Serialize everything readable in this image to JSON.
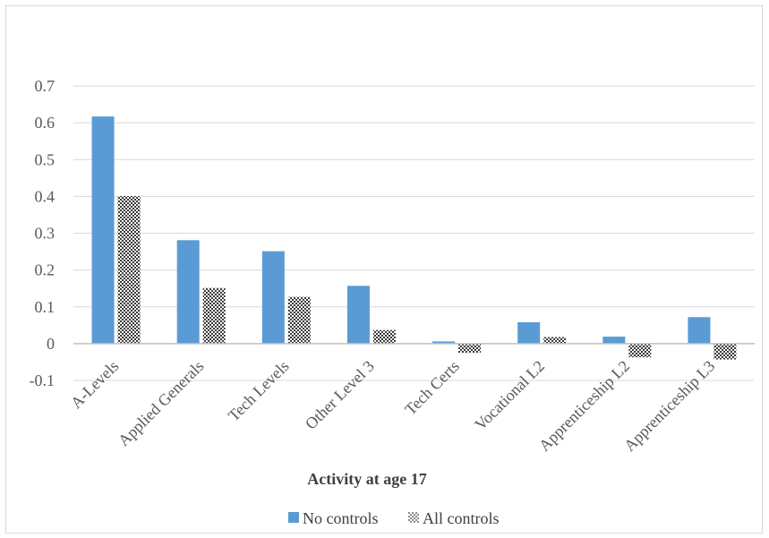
{
  "chart_data": {
    "type": "bar",
    "title": "",
    "xlabel": "Activity at age 17",
    "ylabel": "",
    "ylim": [
      -0.1,
      0.7
    ],
    "yticks": [
      "-0.1",
      "0",
      "0.1",
      "0.2",
      "0.3",
      "0.4",
      "0.5",
      "0.6",
      "0.7"
    ],
    "categories": [
      "A-Levels",
      "Applied Generals",
      "Tech Levels",
      "Other Level 3",
      "Tech Certs",
      "Vocational L2",
      "Apprenticeship L2",
      "Apprenticeship L3"
    ],
    "series": [
      {
        "name": "No controls",
        "values": [
          0.617,
          0.281,
          0.251,
          0.157,
          0.006,
          0.058,
          0.019,
          0.072
        ],
        "color": "#5b9bd5",
        "pattern": "solid"
      },
      {
        "name": "All controls",
        "values": [
          0.401,
          0.151,
          0.127,
          0.037,
          -0.025,
          0.018,
          -0.037,
          -0.043
        ],
        "color": "#404040",
        "pattern": "checker"
      }
    ],
    "grid": true,
    "legend": "bottom"
  }
}
